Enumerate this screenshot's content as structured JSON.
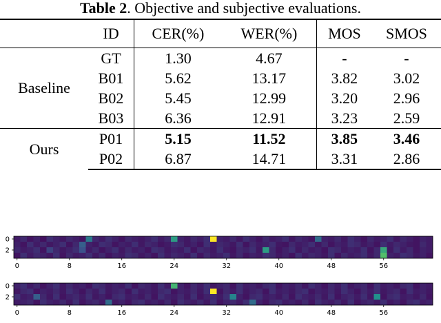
{
  "caption": {
    "label": "Table 2",
    "text": ". Objective and subjective evaluations."
  },
  "table": {
    "headers": [
      "ID",
      "CER(%)",
      "WER(%)",
      "MOS",
      "SMOS"
    ],
    "groups": [
      {
        "name": "Baseline",
        "rows": [
          {
            "id": "GT",
            "cer": "1.30",
            "wer": "4.67",
            "mos": "-",
            "smos": "-"
          },
          {
            "id": "B01",
            "cer": "5.62",
            "wer": "13.17",
            "mos": "3.82",
            "smos": "3.02"
          },
          {
            "id": "B02",
            "cer": "5.45",
            "wer": "12.99",
            "mos": "3.20",
            "smos": "2.96"
          },
          {
            "id": "B03",
            "cer": "6.36",
            "wer": "12.91",
            "mos": "3.23",
            "smos": "2.59"
          }
        ]
      },
      {
        "name": "Ours",
        "rows": [
          {
            "id": "P01",
            "cer": "5.15",
            "wer": "11.52",
            "mos": "3.85",
            "smos": "3.46",
            "bold": true
          },
          {
            "id": "P02",
            "cer": "6.87",
            "wer": "14.71",
            "mos": "3.31",
            "smos": "2.86"
          }
        ]
      }
    ]
  },
  "chart_data": [
    {
      "type": "heatmap",
      "columns": 64,
      "rows": 4,
      "xticks": [
        0,
        8,
        16,
        24,
        32,
        40,
        48,
        56
      ],
      "yticks": [
        0,
        2
      ],
      "colormap": [
        "#440154",
        "#3b528b",
        "#21918c",
        "#5ec962",
        "#fde725"
      ],
      "values": [
        [
          0.08,
          0.12,
          0.06,
          0.1,
          0.05,
          0.14,
          0.1,
          0.07,
          0.12,
          0.09,
          0.06,
          0.4,
          0.12,
          0.08,
          0.14,
          0.1,
          0.06,
          0.12,
          0.09,
          0.07,
          0.1,
          0.14,
          0.08,
          0.12,
          0.55,
          0.1,
          0.07,
          0.12,
          0.09,
          0.14,
          0.06,
          0.1,
          0.08,
          0.12,
          0.07,
          0.14,
          0.1,
          0.06,
          0.12,
          0.08,
          0.1,
          0.14,
          0.07,
          0.12,
          0.09,
          0.06,
          0.35,
          0.1,
          0.08,
          0.12,
          0.07,
          0.14,
          0.1,
          0.06,
          0.12,
          0.08,
          0.1,
          0.14,
          0.07,
          0.12,
          0.09,
          0.06,
          0.1,
          0.08
        ],
        [
          0.1,
          0.06,
          0.14,
          0.08,
          0.12,
          0.07,
          0.1,
          0.14,
          0.06,
          0.12,
          0.08,
          0.1,
          0.07,
          0.14,
          0.12,
          0.06,
          0.1,
          0.08,
          0.14,
          0.07,
          0.12,
          0.1,
          0.06,
          0.08,
          0.14,
          0.12,
          0.07,
          0.1,
          0.06,
          0.14,
          0.08,
          0.12,
          0.1,
          0.07,
          0.14,
          0.06,
          0.12,
          0.08,
          0.1,
          0.14,
          0.07,
          0.06,
          0.12,
          0.08,
          0.1,
          0.14,
          0.07,
          0.12,
          0.06,
          0.1,
          0.08,
          0.14,
          0.12,
          0.07,
          0.1,
          0.06,
          0.14,
          0.08,
          0.12,
          0.1,
          0.07,
          0.06,
          0.12,
          0.08
        ],
        [
          0.12,
          0.08,
          0.1,
          0.14,
          0.06,
          0.2,
          0.12,
          0.07,
          0.1,
          0.14,
          0.25,
          0.08,
          0.12,
          0.06,
          0.1,
          0.14,
          0.07,
          0.12,
          0.08,
          0.1,
          0.06,
          0.14,
          0.12,
          0.07,
          0.1,
          0.08,
          0.14,
          0.06,
          0.12,
          0.1,
          0.07,
          0.14,
          0.08,
          0.06,
          0.12,
          0.1,
          0.14,
          0.07,
          0.08,
          0.12,
          0.06,
          0.1,
          0.14,
          0.07,
          0.12,
          0.08,
          0.1,
          0.06,
          0.14,
          0.12,
          0.07,
          0.1,
          0.08,
          0.14,
          0.06,
          0.12,
          0.1,
          0.07,
          0.14,
          0.08,
          0.12,
          0.06,
          0.1,
          0.08
        ],
        [
          0.06,
          0.14,
          0.08,
          0.12,
          0.1,
          0.07,
          0.14,
          0.06,
          0.12,
          0.08,
          0.1,
          0.14,
          0.07,
          0.12,
          0.06,
          0.1,
          0.08,
          0.14,
          0.12,
          0.07,
          0.1,
          0.06,
          0.14,
          0.08,
          0.12,
          0.1,
          0.07,
          0.14,
          0.06,
          0.12,
          0.08,
          0.1,
          0.14,
          0.07,
          0.12,
          0.06,
          0.1,
          0.08,
          0.14,
          0.12,
          0.07,
          0.1,
          0.06,
          0.14,
          0.08,
          0.12,
          0.1,
          0.07,
          0.14,
          0.06,
          0.12,
          0.08,
          0.1,
          0.14,
          0.07,
          0.12,
          0.06,
          0.1,
          0.08,
          0.14,
          0.12,
          0.07,
          0.1,
          0.06
        ]
      ],
      "highlights": [
        {
          "row": 0,
          "col": 30,
          "value": 1.0
        },
        {
          "row": 2,
          "col": 38,
          "value": 0.55
        },
        {
          "row": 2,
          "col": 56,
          "value": 0.6
        },
        {
          "row": 3,
          "col": 56,
          "value": 0.7
        },
        {
          "row": 1,
          "col": 10,
          "value": 0.3
        }
      ]
    },
    {
      "type": "heatmap",
      "columns": 64,
      "rows": 4,
      "xticks": [
        0,
        8,
        16,
        24,
        32,
        40,
        48,
        56
      ],
      "yticks": [
        0,
        2
      ],
      "colormap": [
        "#440154",
        "#3b528b",
        "#21918c",
        "#5ec962",
        "#fde725"
      ],
      "values": [
        [
          0.1,
          0.14,
          0.08,
          0.12,
          0.06,
          0.1,
          0.14,
          0.07,
          0.12,
          0.08,
          0.1,
          0.06,
          0.14,
          0.12,
          0.07,
          0.1,
          0.08,
          0.14,
          0.06,
          0.12,
          0.1,
          0.07,
          0.14,
          0.08,
          0.65,
          0.1,
          0.06,
          0.12,
          0.08,
          0.14,
          0.07,
          0.1,
          0.12,
          0.06,
          0.14,
          0.08,
          0.1,
          0.07,
          0.12,
          0.14,
          0.06,
          0.1,
          0.08,
          0.12,
          0.07,
          0.14,
          0.1,
          0.06,
          0.12,
          0.08,
          0.14,
          0.07,
          0.1,
          0.12,
          0.06,
          0.14,
          0.08,
          0.1,
          0.07,
          0.12,
          0.14,
          0.06,
          0.1,
          0.08
        ],
        [
          0.07,
          0.12,
          0.14,
          0.06,
          0.1,
          0.08,
          0.12,
          0.07,
          0.14,
          0.1,
          0.06,
          0.12,
          0.08,
          0.14,
          0.07,
          0.1,
          0.12,
          0.06,
          0.14,
          0.08,
          0.1,
          0.07,
          0.12,
          0.14,
          0.06,
          0.1,
          0.08,
          0.12,
          0.07,
          0.14,
          0.1,
          0.06,
          0.12,
          0.08,
          0.14,
          0.07,
          0.1,
          0.12,
          0.06,
          0.14,
          0.08,
          0.1,
          0.07,
          0.12,
          0.14,
          0.06,
          0.1,
          0.08,
          0.12,
          0.07,
          0.14,
          0.1,
          0.06,
          0.12,
          0.08,
          0.14,
          0.07,
          0.1,
          0.12,
          0.06,
          0.14,
          0.08,
          0.1,
          0.07
        ],
        [
          0.14,
          0.08,
          0.1,
          0.3,
          0.12,
          0.07,
          0.14,
          0.06,
          0.1,
          0.12,
          0.08,
          0.14,
          0.07,
          0.1,
          0.06,
          0.12,
          0.14,
          0.08,
          0.1,
          0.07,
          0.12,
          0.06,
          0.14,
          0.1,
          0.08,
          0.12,
          0.07,
          0.14,
          0.06,
          0.1,
          0.12,
          0.08,
          0.14,
          0.07,
          0.1,
          0.06,
          0.12,
          0.14,
          0.08,
          0.1,
          0.07,
          0.12,
          0.06,
          0.14,
          0.1,
          0.08,
          0.12,
          0.07,
          0.14,
          0.06,
          0.1,
          0.12,
          0.08,
          0.14,
          0.07,
          0.1,
          0.06,
          0.12,
          0.14,
          0.08,
          0.1,
          0.07,
          0.12,
          0.06
        ],
        [
          0.08,
          0.1,
          0.12,
          0.06,
          0.14,
          0.1,
          0.08,
          0.12,
          0.07,
          0.14,
          0.06,
          0.1,
          0.12,
          0.08,
          0.14,
          0.07,
          0.1,
          0.06,
          0.12,
          0.14,
          0.08,
          0.1,
          0.07,
          0.12,
          0.06,
          0.14,
          0.1,
          0.08,
          0.12,
          0.07,
          0.14,
          0.06,
          0.1,
          0.12,
          0.08,
          0.14,
          0.07,
          0.1,
          0.06,
          0.12,
          0.14,
          0.08,
          0.1,
          0.07,
          0.12,
          0.06,
          0.14,
          0.1,
          0.08,
          0.12,
          0.07,
          0.14,
          0.06,
          0.1,
          0.12,
          0.08,
          0.14,
          0.07,
          0.1,
          0.06,
          0.12,
          0.14,
          0.08,
          0.1
        ]
      ],
      "highlights": [
        {
          "row": 1,
          "col": 30,
          "value": 1.0
        },
        {
          "row": 2,
          "col": 33,
          "value": 0.45
        },
        {
          "row": 2,
          "col": 55,
          "value": 0.5
        },
        {
          "row": 3,
          "col": 14,
          "value": 0.35
        },
        {
          "row": 3,
          "col": 36,
          "value": 0.35
        }
      ]
    }
  ]
}
